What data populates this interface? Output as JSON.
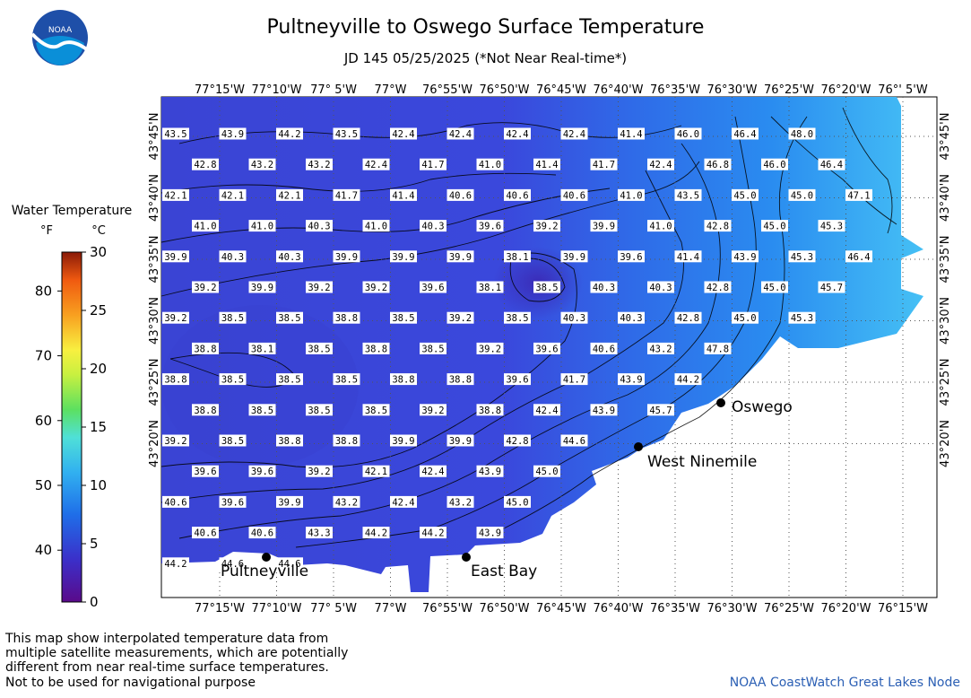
{
  "header": {
    "title": "Pultneyville to Oswego Surface Temperature",
    "subtitle": "JD 145 05/25/2025 (*Not Near Real-time*)",
    "logo_text": "NOAA"
  },
  "legend": {
    "title": "Water Temperature",
    "unit_f": "°F",
    "unit_c": "°C",
    "f_ticks": [
      "40",
      "50",
      "60",
      "70",
      "80"
    ],
    "c_ticks": [
      "0",
      "5",
      "10",
      "15",
      "20",
      "25",
      "30"
    ]
  },
  "axes": {
    "lon_labels": [
      "77°15'W",
      "77°10'W",
      "77° 5'W",
      "77°W",
      "76°55'W",
      "76°50'W",
      "76°45'W",
      "76°40'W",
      "76°35'W",
      "76°30'W",
      "76°25'W",
      "76°20'W",
      "76°15'W"
    ],
    "lon_labels_top": [
      "77°15'W",
      "77°10'W",
      "77° 5'W",
      "77°W",
      "76°55'W",
      "76°50'W",
      "76°45'W",
      "76°40'W",
      "76°35'W",
      "76°30'W",
      "76°25'W",
      "76°20'W",
      "76°' 5'W"
    ],
    "lat_labels": [
      "43°45'N",
      "43°40'N",
      "43°35'N",
      "43°30'N",
      "43°25'N",
      "43°20'N"
    ]
  },
  "places": [
    {
      "name": "Oswego"
    },
    {
      "name": "West Ninemile"
    },
    {
      "name": "Pultneyville"
    },
    {
      "name": "East Bay"
    }
  ],
  "grid_values": [
    [
      "43.5",
      "43.9",
      "44.2",
      "43.5",
      "42.4",
      "42.4",
      "42.4",
      "42.4",
      "41.4",
      "46.0",
      "46.4",
      "48.0"
    ],
    [
      "42.8",
      "43.2",
      "43.2",
      "42.4",
      "41.7",
      "41.0",
      "41.4",
      "41.7",
      "42.4",
      "46.8",
      "46.0",
      "46.4"
    ],
    [
      "42.1",
      "42.1",
      "42.1",
      "41.7",
      "41.4",
      "40.6",
      "40.6",
      "40.6",
      "41.0",
      "43.5",
      "45.0",
      "45.0",
      "47.1"
    ],
    [
      "41.0",
      "41.0",
      "40.3",
      "41.0",
      "40.3",
      "39.6",
      "39.2",
      "39.9",
      "41.0",
      "42.8",
      "45.0",
      "45.3"
    ],
    [
      "39.9",
      "40.3",
      "40.3",
      "39.9",
      "39.9",
      "39.9",
      "38.1",
      "39.9",
      "39.6",
      "41.4",
      "43.9",
      "45.3",
      "46.4"
    ],
    [
      "39.2",
      "39.9",
      "39.2",
      "39.2",
      "39.6",
      "38.1",
      "38.5",
      "40.3",
      "40.3",
      "42.8",
      "45.0",
      "45.7"
    ],
    [
      "39.2",
      "38.5",
      "38.5",
      "38.8",
      "38.5",
      "39.2",
      "38.5",
      "40.3",
      "40.3",
      "42.8",
      "45.0",
      "45.3"
    ],
    [
      "38.8",
      "38.1",
      "38.5",
      "38.8",
      "38.5",
      "39.2",
      "39.6",
      "40.6",
      "43.2",
      "47.8"
    ],
    [
      "38.8",
      "38.5",
      "38.5",
      "38.5",
      "38.8",
      "38.8",
      "39.6",
      "41.7",
      "43.9",
      "44.2"
    ],
    [
      "38.8",
      "38.5",
      "38.5",
      "38.5",
      "39.2",
      "38.8",
      "42.4",
      "43.9",
      "45.7"
    ],
    [
      "39.2",
      "38.5",
      "38.8",
      "38.8",
      "39.9",
      "39.9",
      "42.8",
      "44.6"
    ],
    [
      "39.6",
      "39.6",
      "39.2",
      "42.1",
      "42.4",
      "43.9",
      "45.0"
    ],
    [
      "40.6",
      "39.6",
      "39.9",
      "43.2",
      "42.4",
      "43.2",
      "45.0"
    ],
    [
      "40.6",
      "40.6",
      "43.3",
      "44.2",
      "44.2",
      "43.9"
    ],
    [
      "44.2",
      "44.6",
      "44.6"
    ]
  ],
  "colors": {
    "title": "#000000",
    "credit": "#2b5fb4",
    "water_cold": "#3a3fd0",
    "water_warm": "#4fc3f7"
  },
  "footer": {
    "note_line1": "This map show interpolated temperature data from",
    "note_line2": "multiple satellite measurements, which are potentially",
    "note_line3": "different from near real-time surface temperatures.",
    "nav_note": "Not to be used for navigational purpose",
    "credit": "NOAA CoastWatch Great Lakes Node"
  }
}
